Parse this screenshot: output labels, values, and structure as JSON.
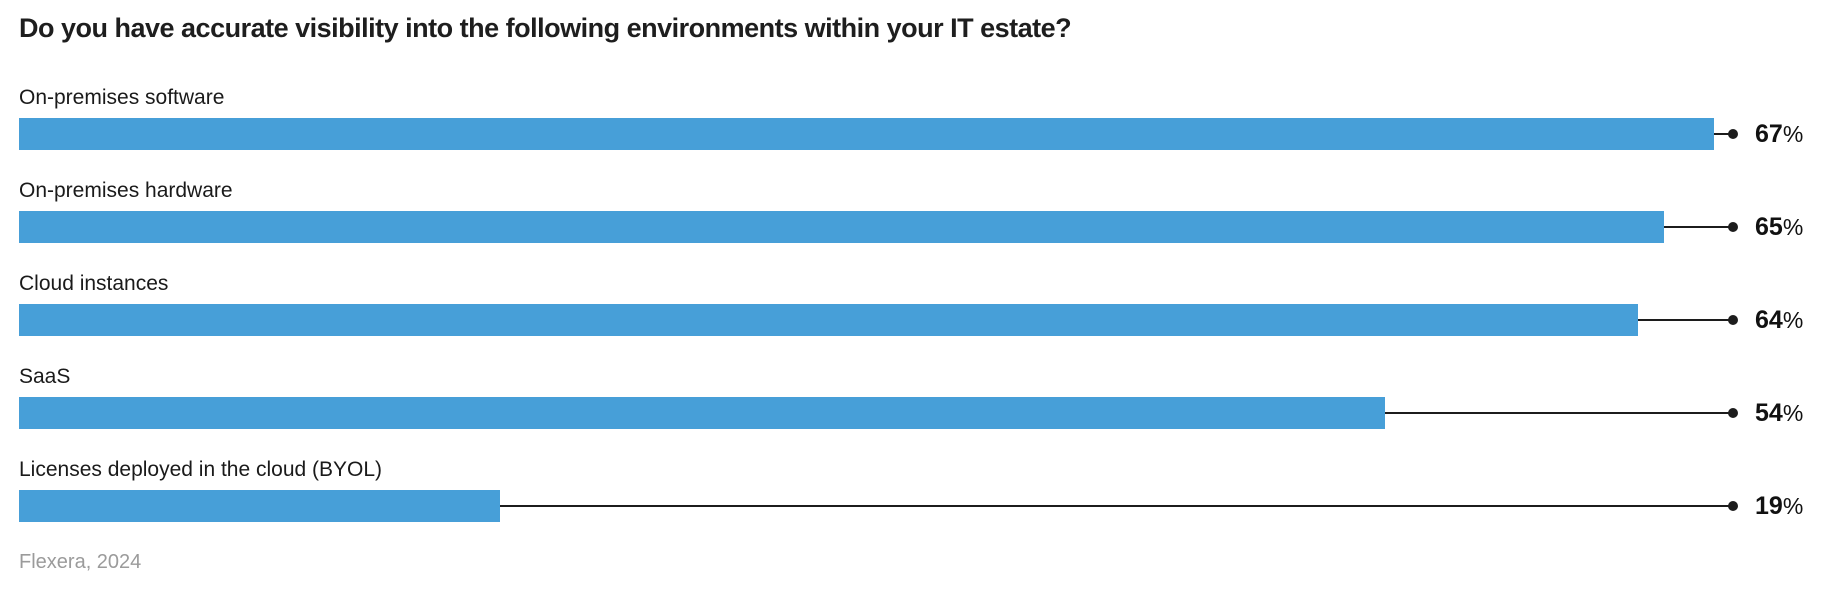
{
  "chart_data": {
    "type": "bar",
    "orientation": "horizontal",
    "title": "Do you have accurate visibility into the following environments within your IT estate?",
    "source": "Flexera, 2024",
    "categories": [
      "On-premises software",
      "On-premises hardware",
      "Cloud instances",
      "SaaS",
      "Licenses deployed in the cloud (BYOL)"
    ],
    "values": [
      67,
      65,
      64,
      54,
      19
    ],
    "value_suffix": "%",
    "xlim": [
      0,
      67.8
    ],
    "grid": false,
    "legend": false,
    "colors": {
      "bar": "#479fd8",
      "leader_line": "#1c1c1c",
      "title_text": "#1e1e1e",
      "category_text": "#1a1a1a",
      "value_text": "#111111",
      "source_text": "#9b9b9b",
      "background": "#ffffff"
    }
  }
}
